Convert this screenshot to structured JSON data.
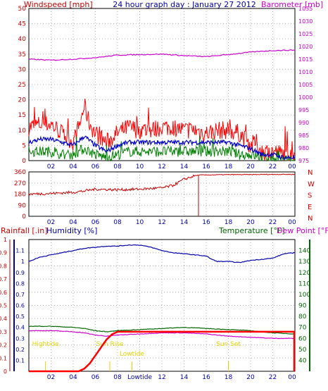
{
  "header": {
    "title": "24 hour graph day : January 27 2012",
    "windspeed_label": "Windspeed [mph]",
    "barometer_label": "Barometer [mb]"
  },
  "bottom": {
    "rainfall_label": "Rainfall [.in]",
    "humidity_label": "Humidity [%]",
    "temperature_label": "Temperature [°F]",
    "dewpoint_label": "Dew Point [°F]"
  },
  "colors": {
    "windspeed": "#ff0000",
    "wind_avg": "#0000cc",
    "wind_low": "#008000",
    "barometer": "#cc00cc",
    "direction": "#cc0000",
    "humidity": "#0000aa",
    "temperature": "#006600",
    "dewpoint": "#cc00cc",
    "rain": "#ff0000",
    "tide": "#e6d200",
    "grid": "#b0b0b0",
    "frame": "#000000",
    "axis_red": "#cc0000",
    "axis_magenta": "#cc00cc",
    "axis_blue": "#0000aa",
    "axis_green": "#006600",
    "axis_title": "#0000aa"
  },
  "chart_data": [
    {
      "type": "line",
      "id": "wind-baro",
      "x_ticks": [
        "02",
        "04",
        "06",
        "08",
        "10",
        "12",
        "14",
        "16",
        "18",
        "20",
        "22",
        "00"
      ],
      "y_left": {
        "label": "Windspeed [mph]",
        "range": [
          0,
          50
        ],
        "ticks": [
          0,
          5,
          10,
          15,
          20,
          25,
          30,
          35,
          40,
          45,
          50
        ]
      },
      "y_right": {
        "label": "Barometer [mb]",
        "range": [
          975,
          1035
        ],
        "ticks": [
          975,
          980,
          985,
          990,
          995,
          1000,
          1005,
          1010,
          1015,
          1020,
          1025,
          1030,
          1035
        ]
      },
      "grid": true,
      "series": [
        {
          "hours": [
            0,
            2,
            4,
            6,
            8,
            10,
            12,
            14,
            16,
            18,
            20,
            22,
            24
          ],
          "values": [
            1015,
            1014.6,
            1015,
            1015.6,
            1016.6,
            1016.8,
            1017,
            1016.4,
            1016,
            1016.8,
            1017.8,
            1018.4,
            1018.6
          ],
          "axis": "right"
        },
        {
          "hours": [
            0,
            1,
            2,
            3,
            4,
            4.6,
            5,
            5.5,
            6,
            7,
            8,
            9,
            10,
            11,
            12,
            13,
            14,
            15,
            16,
            17,
            18,
            19,
            20,
            20.5,
            21,
            22,
            23,
            24
          ],
          "values": [
            11,
            12,
            12,
            9,
            6,
            12,
            18,
            12,
            9,
            6,
            9,
            11,
            10,
            10,
            11,
            11,
            10,
            10,
            9,
            10,
            10,
            9,
            5,
            6,
            3,
            3,
            2,
            1
          ]
        },
        {
          "hours": [
            0,
            1,
            2,
            3,
            4,
            5,
            6,
            7,
            8,
            9,
            10,
            11,
            12,
            13,
            14,
            15,
            16,
            17,
            18,
            19,
            20,
            21,
            22,
            23,
            24
          ],
          "values": [
            6,
            7,
            7,
            6,
            5,
            8,
            5,
            3,
            5,
            6,
            6,
            6,
            6,
            6,
            6,
            6,
            6,
            6,
            6,
            5,
            4,
            2,
            2,
            1,
            1
          ]
        },
        {
          "hours": [
            0,
            1,
            2,
            3,
            4,
            5,
            6,
            7,
            8,
            9,
            10,
            11,
            12,
            13,
            14,
            15,
            16,
            17,
            18,
            19,
            20,
            21,
            22,
            23,
            24
          ],
          "values": [
            3,
            3,
            3,
            2,
            2,
            4,
            2,
            1,
            2,
            3,
            3,
            3,
            3,
            3,
            3,
            3,
            3,
            3,
            3,
            2,
            2,
            1,
            1,
            0,
            0
          ]
        }
      ]
    },
    {
      "type": "line",
      "id": "wind-direction",
      "x_ticks": [
        "02",
        "04",
        "06",
        "08",
        "10",
        "12",
        "14",
        "16",
        "18",
        "20",
        "22",
        "00"
      ],
      "y_left": {
        "range": [
          0,
          360
        ],
        "ticks": [
          0,
          90,
          180,
          270,
          360
        ]
      },
      "y_right_labels": [
        "N",
        "W",
        "S",
        "E",
        "N"
      ],
      "grid": true,
      "series": [
        {
          "hours": [
            0,
            2,
            4,
            5,
            6,
            8,
            10,
            12,
            13,
            14,
            15,
            15.5,
            16,
            18,
            20,
            22,
            24
          ],
          "values": [
            180,
            185,
            195,
            205,
            220,
            215,
            220,
            230,
            250,
            300,
            330,
            335,
            335,
            338,
            338,
            340,
            340
          ]
        }
      ]
    },
    {
      "type": "line",
      "id": "temp-humidity-rain",
      "x_ticks": [
        "02",
        "04",
        "06",
        "08",
        "Lowtide",
        "12",
        "14",
        "16",
        "18",
        "20",
        "22",
        "00"
      ],
      "y_left_rain": {
        "label": "Rainfall [.in]",
        "range": [
          0,
          1.0
        ],
        "ticks": [
          0,
          0.1,
          0.2,
          0.3,
          0.4,
          0.5,
          0.6,
          0.7,
          0.8,
          0.9,
          1
        ]
      },
      "y_left_humidity": {
        "label": "Humidity [%]",
        "range": [
          0,
          1.2
        ],
        "ticks": [
          0.1,
          0.2,
          0.3,
          0.4,
          0.5,
          0.6,
          0.7,
          0.8,
          0.9,
          1,
          1.1
        ]
      },
      "y_right": {
        "label": "Temperature [°F]",
        "range": [
          30,
          150
        ],
        "ticks": [
          40,
          50,
          60,
          70,
          80,
          90,
          100,
          110,
          120,
          130,
          140
        ]
      },
      "grid": true,
      "tide_markers": [
        {
          "label": "Hightide",
          "hour": 1.5
        },
        {
          "label": "Sun Rise",
          "hour": 7.3
        },
        {
          "label": "Lowtide",
          "hour": 9.3
        },
        {
          "label": "Sun Set",
          "hour": 18.0
        }
      ],
      "series": [
        {
          "hours": [
            0,
            1,
            2,
            3,
            4,
            5,
            6,
            7,
            8,
            9,
            10,
            11,
            12,
            13,
            14,
            15,
            16,
            16.5,
            17,
            18,
            19,
            19.5,
            20,
            21,
            22,
            23,
            24
          ],
          "values": [
            1.0,
            1.04,
            1.06,
            1.08,
            1.1,
            1.12,
            1.13,
            1.14,
            1.14,
            1.15,
            1.15,
            1.13,
            1.1,
            1.08,
            1.07,
            1.06,
            1.05,
            1.02,
            1.0,
            1.0,
            0.99,
            1.0,
            1.01,
            1.02,
            1.03,
            1.07,
            1.08
          ],
          "axis": "humidity"
        },
        {
          "hours": [
            0,
            2,
            4,
            5,
            6,
            7,
            8,
            10,
            12,
            14,
            16,
            18,
            20,
            22,
            24
          ],
          "values": [
            71,
            71,
            70,
            69,
            67,
            66,
            67,
            68,
            69,
            70,
            69,
            68,
            67,
            65,
            64
          ],
          "axis": "right"
        },
        {
          "hours": [
            0,
            2,
            4,
            5,
            6,
            7,
            8,
            10,
            12,
            14,
            16,
            18,
            20,
            22,
            24
          ],
          "values": [
            67,
            67,
            66,
            65,
            63,
            62,
            63,
            64,
            65,
            65,
            64,
            62,
            61,
            60,
            60
          ],
          "axis": "right"
        },
        {
          "hours": [
            0,
            4.5,
            5,
            5.5,
            6,
            6.5,
            7,
            7.5,
            8,
            12,
            16,
            20,
            24
          ],
          "values": [
            0,
            0,
            0.02,
            0.06,
            0.12,
            0.18,
            0.24,
            0.28,
            0.3,
            0.3,
            0.3,
            0.3,
            0.3
          ],
          "axis": "rain"
        }
      ]
    }
  ]
}
